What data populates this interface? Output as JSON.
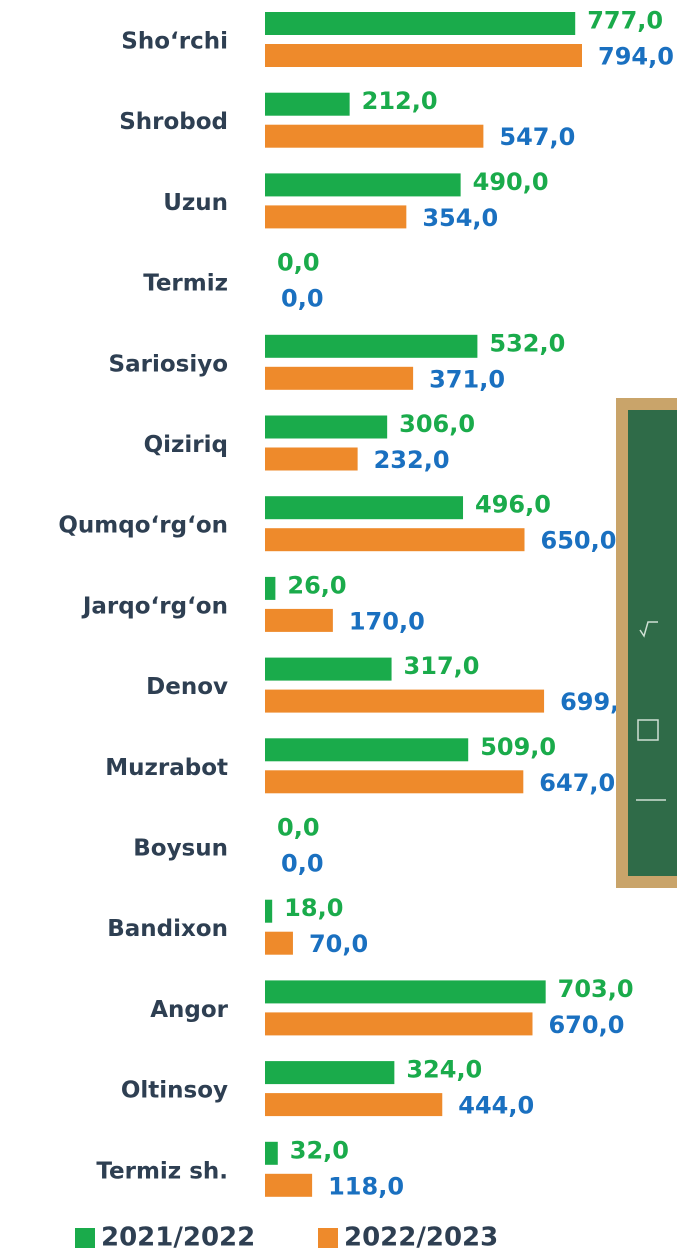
{
  "chart_data": {
    "type": "bar",
    "orientation": "horizontal",
    "categories": [
      "Sho‘rchi",
      "Shrobod",
      "Uzun",
      "Termiz",
      "Sariosiyo",
      "Qiziriq",
      "Qumqo‘rg‘on",
      "Jarqo‘rg‘on",
      "Denov",
      "Muzrabot",
      "Boysun",
      "Bandixon",
      "Angor",
      "Oltinsoy",
      "Termiz sh."
    ],
    "series": [
      {
        "name": "2021/2022",
        "color": "#1aab4b",
        "label_color": "#1aab4b",
        "values": [
          777,
          212,
          490,
          0,
          532,
          306,
          496,
          26,
          317,
          509,
          0,
          18,
          703,
          324,
          32
        ],
        "value_labels": [
          "777,0",
          "212,0",
          "490,0",
          "0,0",
          "532,0",
          "306,0",
          "496,0",
          "26,0",
          "317,0",
          "509,0",
          "0,0",
          "18,0",
          "703,0",
          "324,0",
          "32,0"
        ]
      },
      {
        "name": "2022/2023",
        "color": "#ee8a2b",
        "label_color": "#1a70c0",
        "values": [
          794,
          547,
          354,
          0,
          371,
          232,
          650,
          170,
          699,
          647,
          0,
          70,
          670,
          444,
          118
        ],
        "value_labels": [
          "794,0",
          "547,0",
          "354,0",
          "0,0",
          "371,0",
          "232,0",
          "650,0",
          "170,0",
          "699,0",
          "647,0",
          "0,0",
          "70,0",
          "670,0",
          "444,0",
          "118,0"
        ]
      }
    ],
    "legend": "bottom"
  }
}
